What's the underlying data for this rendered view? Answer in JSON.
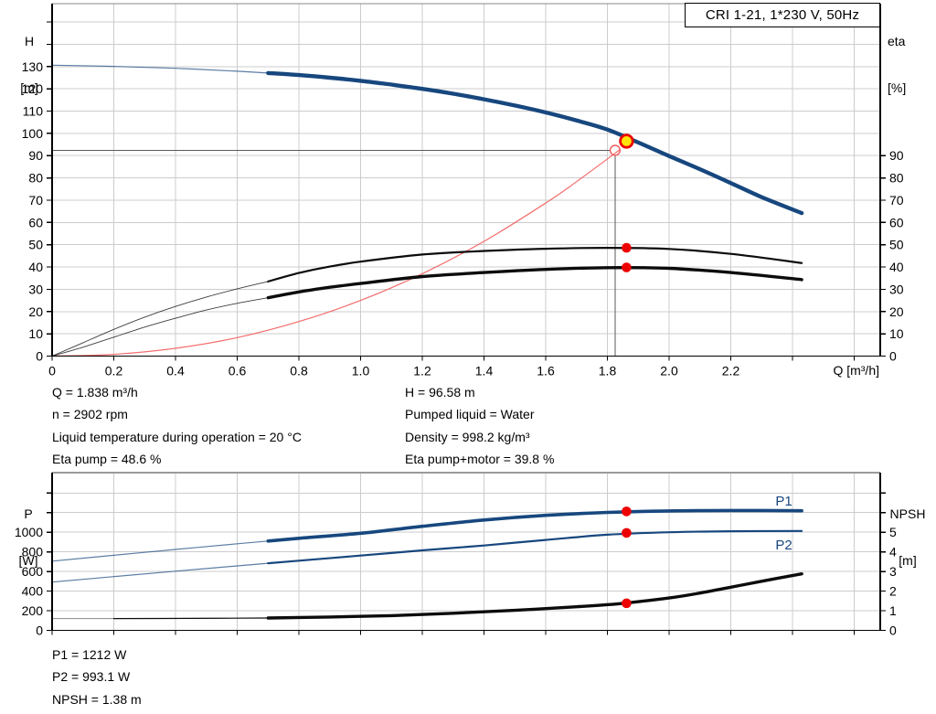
{
  "details_left": [
    "Q = 1.838 m³/h",
    "n = 2902 rpm",
    "Liquid temperature during operation = 20 °C",
    "Eta pump = 48.6 %"
  ],
  "details_right": [
    "H = 96.58 m",
    "Pumped liquid = Water",
    "Density = 998.2 kg/m³",
    "Eta pump+motor = 39.8 %"
  ],
  "details_bottom": [
    "P1 = 1212 W",
    "P2 = 993.1 W",
    "NPSH = 1.38 m"
  ],
  "colors": {
    "curve_blue": "#17477e",
    "curve_black": "#0c0c0c",
    "curve_red": "#f25353",
    "marker_red": "#ee0000",
    "duty_yellow": "#ffe30a",
    "grid": "#cccccc",
    "crosshair": "#5a5a5a",
    "axis": "#000000"
  },
  "chart_data": [
    {
      "type": "line",
      "title": "CRI 1-21, 1*230 V, 50Hz",
      "grid_on": true,
      "alt_factor": 1,
      "x_axis": {
        "label": "Q [m³/h]",
        "min": 0,
        "max": 2.68,
        "ticks": [
          [
            0,
            "0"
          ],
          [
            0.2,
            "0.2"
          ],
          [
            0.4,
            "0.4"
          ],
          [
            0.6,
            "0.6"
          ],
          [
            0.8,
            "0.8"
          ],
          [
            1,
            "1.0"
          ],
          [
            1.2,
            "1.2"
          ],
          [
            1.4,
            "1.4"
          ],
          [
            1.6,
            "1.6"
          ],
          [
            1.8,
            "1.8"
          ],
          [
            2,
            "2.0"
          ],
          [
            2.2,
            "2.2"
          ],
          [
            2.4,
            ""
          ],
          [
            2.6,
            ""
          ]
        ],
        "grid": [
          0.2,
          0.4,
          0.6,
          0.8,
          1,
          1.2,
          1.4,
          1.6,
          1.8,
          2,
          2.2,
          2.4,
          2.6
        ]
      },
      "y_left": {
        "label_lines": [
          "H",
          "[m]"
        ],
        "min": 0,
        "max": 158,
        "ticks": [
          [
            0,
            "0"
          ],
          [
            10,
            "10"
          ],
          [
            20,
            "20"
          ],
          [
            30,
            "30"
          ],
          [
            40,
            "40"
          ],
          [
            50,
            "50"
          ],
          [
            60,
            "60"
          ],
          [
            70,
            "70"
          ],
          [
            80,
            "80"
          ],
          [
            90,
            "90"
          ],
          [
            100,
            "100"
          ],
          [
            110,
            "110"
          ],
          [
            120,
            "120"
          ],
          [
            130,
            "130"
          ],
          [
            140,
            ""
          ],
          [
            150,
            ""
          ]
        ],
        "grid": [
          10,
          20,
          30,
          40,
          50,
          60,
          70,
          80,
          90,
          100,
          110,
          120,
          130,
          140,
          150
        ]
      },
      "y_right": {
        "label_lines": [
          "eta",
          "[%]"
        ],
        "min": 0,
        "max": 90,
        "ticks": [
          [
            0,
            "0"
          ],
          [
            10,
            "10"
          ],
          [
            20,
            "20"
          ],
          [
            30,
            "30"
          ],
          [
            40,
            "40"
          ],
          [
            50,
            "50"
          ],
          [
            60,
            "60"
          ],
          [
            70,
            "70"
          ],
          [
            80,
            "80"
          ],
          [
            90,
            "90"
          ]
        ]
      },
      "series": [
        {
          "name": "system-curve",
          "axis": "left",
          "color": "curve_red",
          "segments": [
            {
              "width": 1.2,
              "opacity": 0.85
            }
          ],
          "points": [
            [
              0,
              0
            ],
            [
              0.2,
              0.8
            ],
            [
              0.4,
              3.5
            ],
            [
              0.6,
              8.3
            ],
            [
              0.8,
              15.5
            ],
            [
              1,
              25
            ],
            [
              1.2,
              37
            ],
            [
              1.4,
              51.5
            ],
            [
              1.6,
              68.7
            ],
            [
              1.7,
              78.3
            ],
            [
              1.838,
              92.4
            ]
          ]
        },
        {
          "name": "head-curve",
          "axis": "left",
          "color": "curve_blue",
          "segments": [
            {
              "until": 0.7,
              "width": 1.2,
              "opacity": 0.7
            },
            {
              "width": 4.4
            }
          ],
          "points": [
            [
              0,
              130.6
            ],
            [
              0.2,
              130.1
            ],
            [
              0.4,
              129.2
            ],
            [
              0.6,
              127.9
            ],
            [
              0.7,
              127.1
            ],
            [
              0.8,
              126.2
            ],
            [
              0.9,
              125
            ],
            [
              1,
              123.6
            ],
            [
              1.1,
              121.9
            ],
            [
              1.2,
              120
            ],
            [
              1.3,
              117.8
            ],
            [
              1.4,
              115.3
            ],
            [
              1.5,
              112.5
            ],
            [
              1.6,
              109.4
            ],
            [
              1.7,
              105.8
            ],
            [
              1.8,
              101.7
            ],
            [
              1.9,
              95.9
            ],
            [
              2,
              89.8
            ],
            [
              2.1,
              83.9
            ],
            [
              2.2,
              77.7
            ],
            [
              2.3,
              71.4
            ],
            [
              2.43,
              64.2
            ]
          ]
        },
        {
          "name": "eta-pump-curve",
          "axis": "right",
          "color": "curve_black",
          "segments": [
            {
              "until": 0.7,
              "width": 0.9,
              "opacity": 0.8
            },
            {
              "width": 2.2
            }
          ],
          "points": [
            [
              0,
              0
            ],
            [
              0.1,
              6
            ],
            [
              0.2,
              12
            ],
            [
              0.3,
              17.5
            ],
            [
              0.4,
              22.3
            ],
            [
              0.5,
              26.5
            ],
            [
              0.6,
              30.2
            ],
            [
              0.7,
              33.5
            ],
            [
              0.8,
              37.3
            ],
            [
              0.9,
              40.2
            ],
            [
              1,
              42.4
            ],
            [
              1.2,
              45.6
            ],
            [
              1.4,
              47.2
            ],
            [
              1.6,
              48.2
            ],
            [
              1.8,
              48.6
            ],
            [
              2,
              48.1
            ],
            [
              2.2,
              45.9
            ],
            [
              2.43,
              41.8
            ]
          ]
        },
        {
          "name": "eta-pump-motor-curve",
          "axis": "right",
          "color": "curve_black",
          "segments": [
            {
              "until": 0.7,
              "width": 0.9,
              "opacity": 0.8
            },
            {
              "width": 3.4
            }
          ],
          "points": [
            [
              0,
              0
            ],
            [
              0.1,
              4
            ],
            [
              0.2,
              8.5
            ],
            [
              0.3,
              13
            ],
            [
              0.4,
              17
            ],
            [
              0.5,
              20.7
            ],
            [
              0.6,
              23.7
            ],
            [
              0.7,
              26.2
            ],
            [
              0.8,
              28.8
            ],
            [
              0.9,
              30.9
            ],
            [
              1,
              32.6
            ],
            [
              1.2,
              35.7
            ],
            [
              1.4,
              37.5
            ],
            [
              1.6,
              38.9
            ],
            [
              1.8,
              39.7
            ],
            [
              2,
              39.4
            ],
            [
              2.2,
              37.5
            ],
            [
              2.43,
              34.3
            ]
          ]
        }
      ],
      "markers": [
        {
          "kind": "open",
          "q": 1.825,
          "v": 92.4,
          "axis": "left"
        },
        {
          "kind": "duty",
          "q": 1.862,
          "v": 96.5,
          "axis": "left"
        },
        {
          "kind": "dot",
          "q": 1.862,
          "v": 48.6,
          "axis": "right"
        },
        {
          "kind": "dot",
          "q": 1.862,
          "v": 39.8,
          "axis": "right"
        }
      ],
      "crosshair": {
        "q": 1.825,
        "h": 92.4
      }
    },
    {
      "type": "line",
      "title": "",
      "grid_on": true,
      "alt_factor": 200,
      "x_axis": {
        "label": "",
        "min": 0,
        "max": 2.68,
        "ticks": [
          [
            0,
            ""
          ],
          [
            0.2,
            ""
          ],
          [
            0.4,
            ""
          ],
          [
            0.6,
            ""
          ],
          [
            0.8,
            ""
          ],
          [
            1,
            ""
          ],
          [
            1.2,
            ""
          ],
          [
            1.4,
            ""
          ],
          [
            1.6,
            ""
          ],
          [
            1.8,
            ""
          ],
          [
            2,
            ""
          ],
          [
            2.2,
            ""
          ],
          [
            2.4,
            ""
          ],
          [
            2.6,
            ""
          ]
        ],
        "grid": [
          0.2,
          0.4,
          0.6,
          0.8,
          1,
          1.2,
          1.4,
          1.6,
          1.8,
          2,
          2.2,
          2.4,
          2.6
        ]
      },
      "y_left": {
        "label_lines": [
          "P",
          "[W]"
        ],
        "min": 0,
        "max": 1600,
        "ticks": [
          [
            0,
            "0"
          ],
          [
            200,
            "200"
          ],
          [
            400,
            "400"
          ],
          [
            600,
            "600"
          ],
          [
            800,
            "800"
          ],
          [
            1000,
            "1000"
          ],
          [
            1200,
            ""
          ],
          [
            1400,
            ""
          ]
        ],
        "grid": [
          200,
          400,
          600,
          800,
          1000,
          1200,
          1400
        ]
      },
      "y_right": {
        "label_lines": [
          "NPSH",
          "[m]"
        ],
        "min": 0,
        "max": 8,
        "ticks": [
          [
            0,
            "0"
          ],
          [
            1,
            "1"
          ],
          [
            2,
            "2"
          ],
          [
            3,
            "3"
          ],
          [
            4,
            "4"
          ],
          [
            5,
            "5"
          ],
          [
            6,
            ""
          ],
          [
            7,
            ""
          ]
        ]
      },
      "series": [
        {
          "name": "p1-curve",
          "axis": "left",
          "color": "curve_blue",
          "segments": [
            {
              "until": 0.7,
              "width": 1.2,
              "opacity": 0.7
            },
            {
              "width": 3.6
            }
          ],
          "label": {
            "text": "P1",
            "q": 2.372,
            "v": 1318
          },
          "points": [
            [
              0,
              705
            ],
            [
              0.2,
              765
            ],
            [
              0.4,
              825
            ],
            [
              0.6,
              882
            ],
            [
              0.7,
              910
            ],
            [
              0.8,
              938
            ],
            [
              1,
              990
            ],
            [
              1.2,
              1060
            ],
            [
              1.4,
              1125
            ],
            [
              1.6,
              1172
            ],
            [
              1.8,
              1202
            ],
            [
              2,
              1217
            ],
            [
              2.2,
              1222
            ],
            [
              2.43,
              1219
            ]
          ]
        },
        {
          "name": "p2-curve",
          "axis": "left",
          "color": "curve_blue",
          "segments": [
            {
              "until": 0.7,
              "width": 1.2,
              "opacity": 0.7
            },
            {
              "width": 2.2
            }
          ],
          "label": {
            "text": "P2",
            "q": 2.372,
            "v": 872
          },
          "points": [
            [
              0,
              492
            ],
            [
              0.2,
              548
            ],
            [
              0.4,
              603
            ],
            [
              0.6,
              657
            ],
            [
              0.7,
              684
            ],
            [
              0.8,
              710
            ],
            [
              1,
              762
            ],
            [
              1.2,
              815
            ],
            [
              1.4,
              865
            ],
            [
              1.6,
              922
            ],
            [
              1.8,
              975
            ],
            [
              2,
              1000
            ],
            [
              2.2,
              1010
            ],
            [
              2.43,
              1013
            ]
          ]
        },
        {
          "name": "npsh-curve",
          "axis": "right",
          "color": "curve_black",
          "segments": [
            {
              "until": 0.2,
              "width": 1,
              "color": "#8a8a8a"
            },
            {
              "until": 0.7,
              "width": 1.2
            },
            {
              "width": 3.4
            }
          ],
          "points": [
            [
              0,
              0.6
            ],
            [
              0.2,
              0.6
            ],
            [
              0.45,
              0.61
            ],
            [
              0.7,
              0.63
            ],
            [
              0.9,
              0.68
            ],
            [
              1.1,
              0.75
            ],
            [
              1.3,
              0.87
            ],
            [
              1.5,
              1.02
            ],
            [
              1.7,
              1.2
            ],
            [
              1.84,
              1.36
            ],
            [
              2,
              1.65
            ],
            [
              2.1,
              1.9
            ],
            [
              2.2,
              2.2
            ],
            [
              2.3,
              2.5
            ],
            [
              2.43,
              2.88
            ]
          ]
        }
      ],
      "markers": [
        {
          "kind": "dot",
          "q": 1.862,
          "v": 1212,
          "axis": "left"
        },
        {
          "kind": "dot",
          "q": 1.862,
          "v": 993.1,
          "axis": "left"
        },
        {
          "kind": "dot",
          "q": 1.862,
          "v": 1.38,
          "axis": "right"
        }
      ],
      "crosshair": null
    }
  ]
}
